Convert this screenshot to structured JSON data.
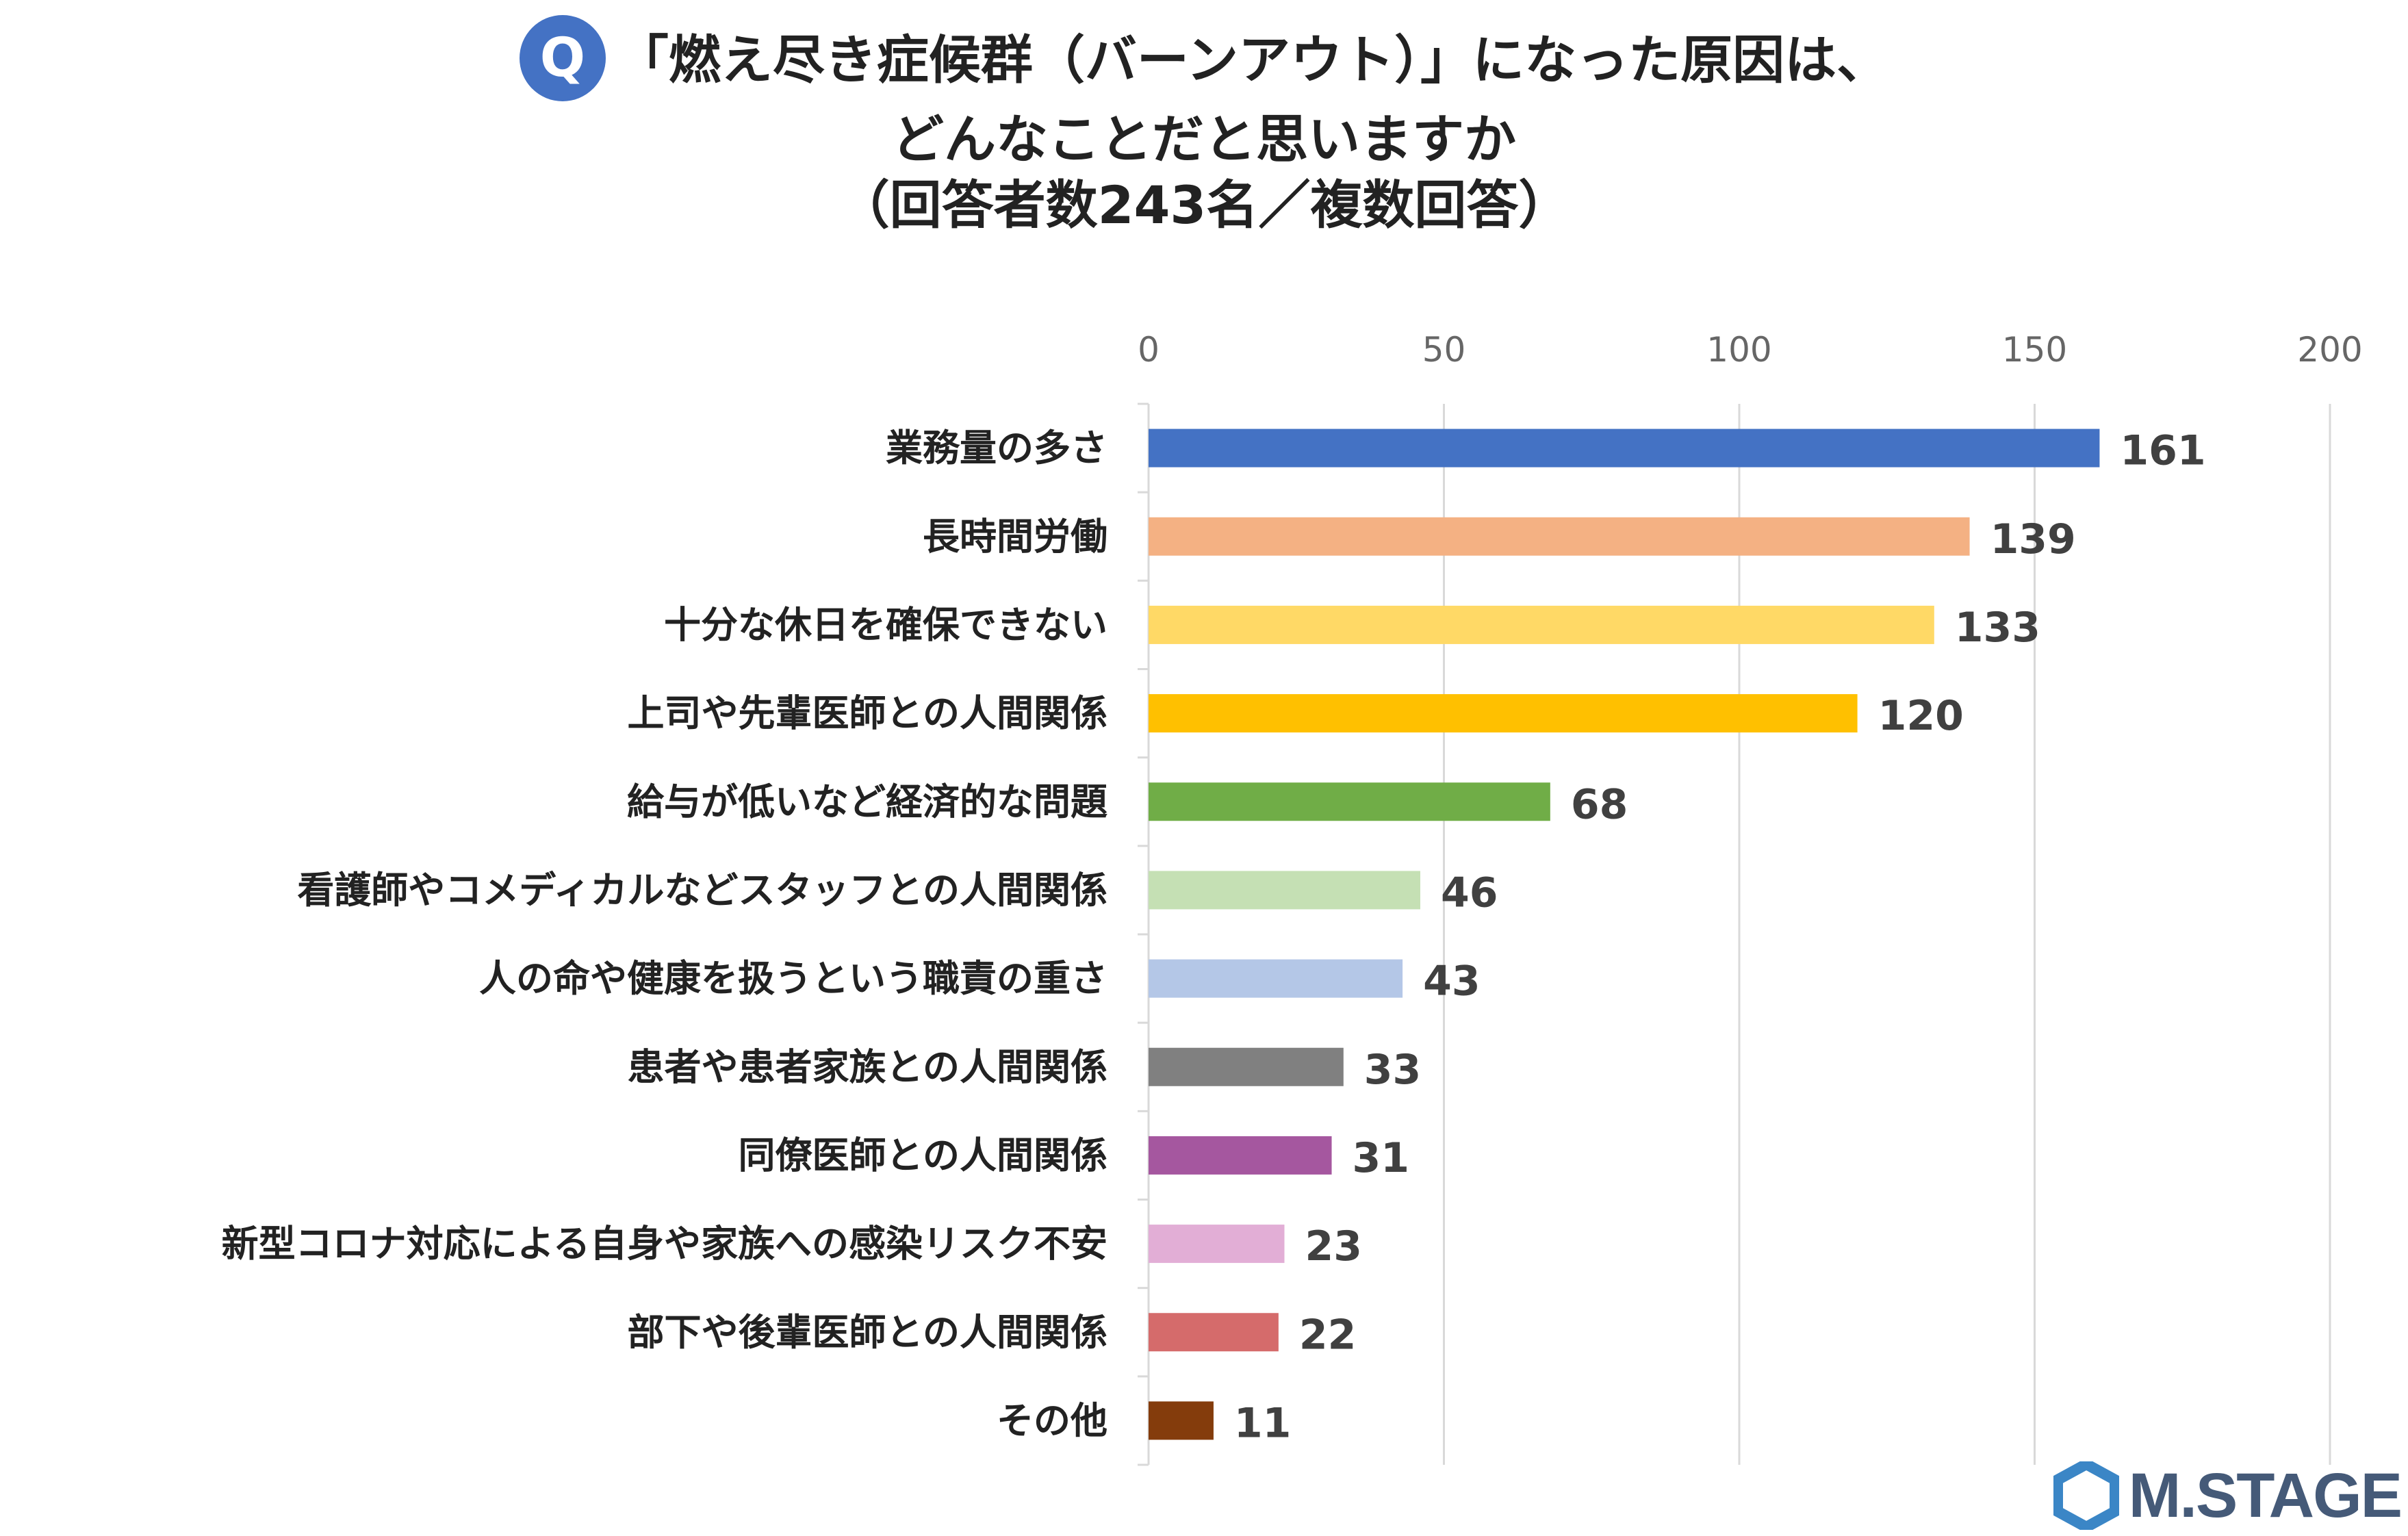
{
  "badge": {
    "text": "Q",
    "color": "#4472c4"
  },
  "title_lines": [
    "「燃え尽き症候群（バーンアウト）」になった原因は、",
    "どんなことだと思いますか",
    "（回答者数243名／複数回答）"
  ],
  "logo": {
    "text": "M.STAGE",
    "color": "#455a78",
    "mark_color": "#3b86c6"
  },
  "chart_data": {
    "type": "bar",
    "orientation": "horizontal",
    "title": "「燃え尽き症候群（バーンアウト）」になった原因は、どんなことだと思いますか（回答者数243名／複数回答）",
    "xlabel": "",
    "ylabel": "",
    "xlim": [
      0,
      200
    ],
    "ticks": [
      0,
      50,
      100,
      150,
      200
    ],
    "grid": true,
    "categories": [
      "業務量の多さ",
      "長時間労働",
      "十分な休日を確保できない",
      "上司や先輩医師との人間関係",
      "給与が低いなど経済的な問題",
      "看護師やコメディカルなどスタッフとの人間関係",
      "人の命や健康を扱うという職責の重さ",
      "患者や患者家族との人間関係",
      "同僚医師との人間関係",
      "新型コロナ対応による自身や家族への感染リスク不安",
      "部下や後輩医師との人間関係",
      "その他"
    ],
    "values": [
      161,
      139,
      133,
      120,
      68,
      46,
      43,
      33,
      31,
      23,
      22,
      11
    ],
    "colors": [
      "#4472c4",
      "#f4b183",
      "#ffd966",
      "#ffc000",
      "#70ad47",
      "#c5e0b4",
      "#b4c7e7",
      "#808080",
      "#a5579f",
      "#e2aed6",
      "#d56b6b",
      "#843c0c"
    ]
  }
}
